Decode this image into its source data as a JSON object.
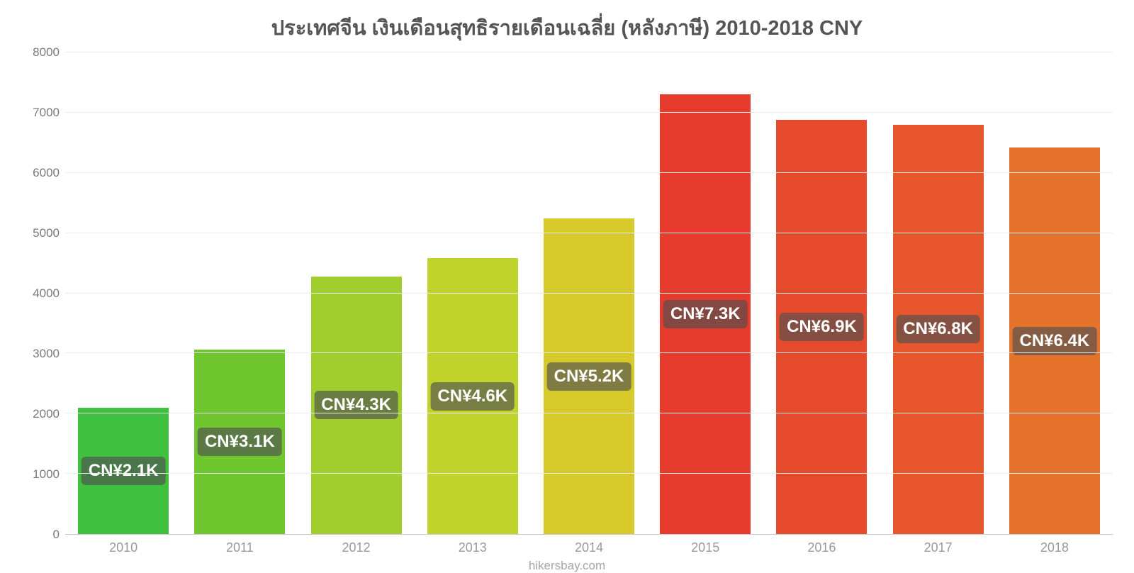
{
  "chart": {
    "type": "bar",
    "title": "ประเทศจีน เงินเดือนสุทธิรายเดือนเฉลี่ย (หลังภาษี) 2010-2018 CNY",
    "title_fontsize": 29,
    "title_color": "#555555",
    "source": "hikersbay.com",
    "background_color": "#ffffff",
    "grid_color": "#ececec",
    "axis_label_color": "#9a9a9a",
    "tick_label_color": "#7a7a7a",
    "bar_width": 0.78,
    "y_axis": {
      "min": 0,
      "max": 8000,
      "step": 1000,
      "ticks": [
        0,
        1000,
        2000,
        3000,
        4000,
        5000,
        6000,
        7000,
        8000
      ],
      "tick_fontsize": 17
    },
    "x_axis": {
      "categories": [
        "2010",
        "2011",
        "2012",
        "2013",
        "2014",
        "2015",
        "2016",
        "2017",
        "2018"
      ],
      "tick_fontsize": 18
    },
    "value_label": {
      "fontsize": 24,
      "color": "#ffffff",
      "background": "rgba(80,80,80,0.65)",
      "border_radius": 6
    },
    "series": [
      {
        "year": "2010",
        "value": 2100,
        "label": "CN¥2.1K",
        "color": "#3fc03f"
      },
      {
        "year": "2011",
        "value": 3060,
        "label": "CN¥3.1K",
        "color": "#6fc62f"
      },
      {
        "year": "2012",
        "value": 4280,
        "label": "CN¥4.3K",
        "color": "#9fce2d"
      },
      {
        "year": "2013",
        "value": 4580,
        "label": "CN¥4.6K",
        "color": "#bfd32c"
      },
      {
        "year": "2014",
        "value": 5240,
        "label": "CN¥5.2K",
        "color": "#d6ca2b"
      },
      {
        "year": "2015",
        "value": 7300,
        "label": "CN¥7.3K",
        "color": "#e63a2c"
      },
      {
        "year": "2016",
        "value": 6880,
        "label": "CN¥6.9K",
        "color": "#e64a2c"
      },
      {
        "year": "2017",
        "value": 6800,
        "label": "CN¥6.8K",
        "color": "#e6552c"
      },
      {
        "year": "2018",
        "value": 6420,
        "label": "CN¥6.4K",
        "color": "#e6732c"
      }
    ]
  }
}
